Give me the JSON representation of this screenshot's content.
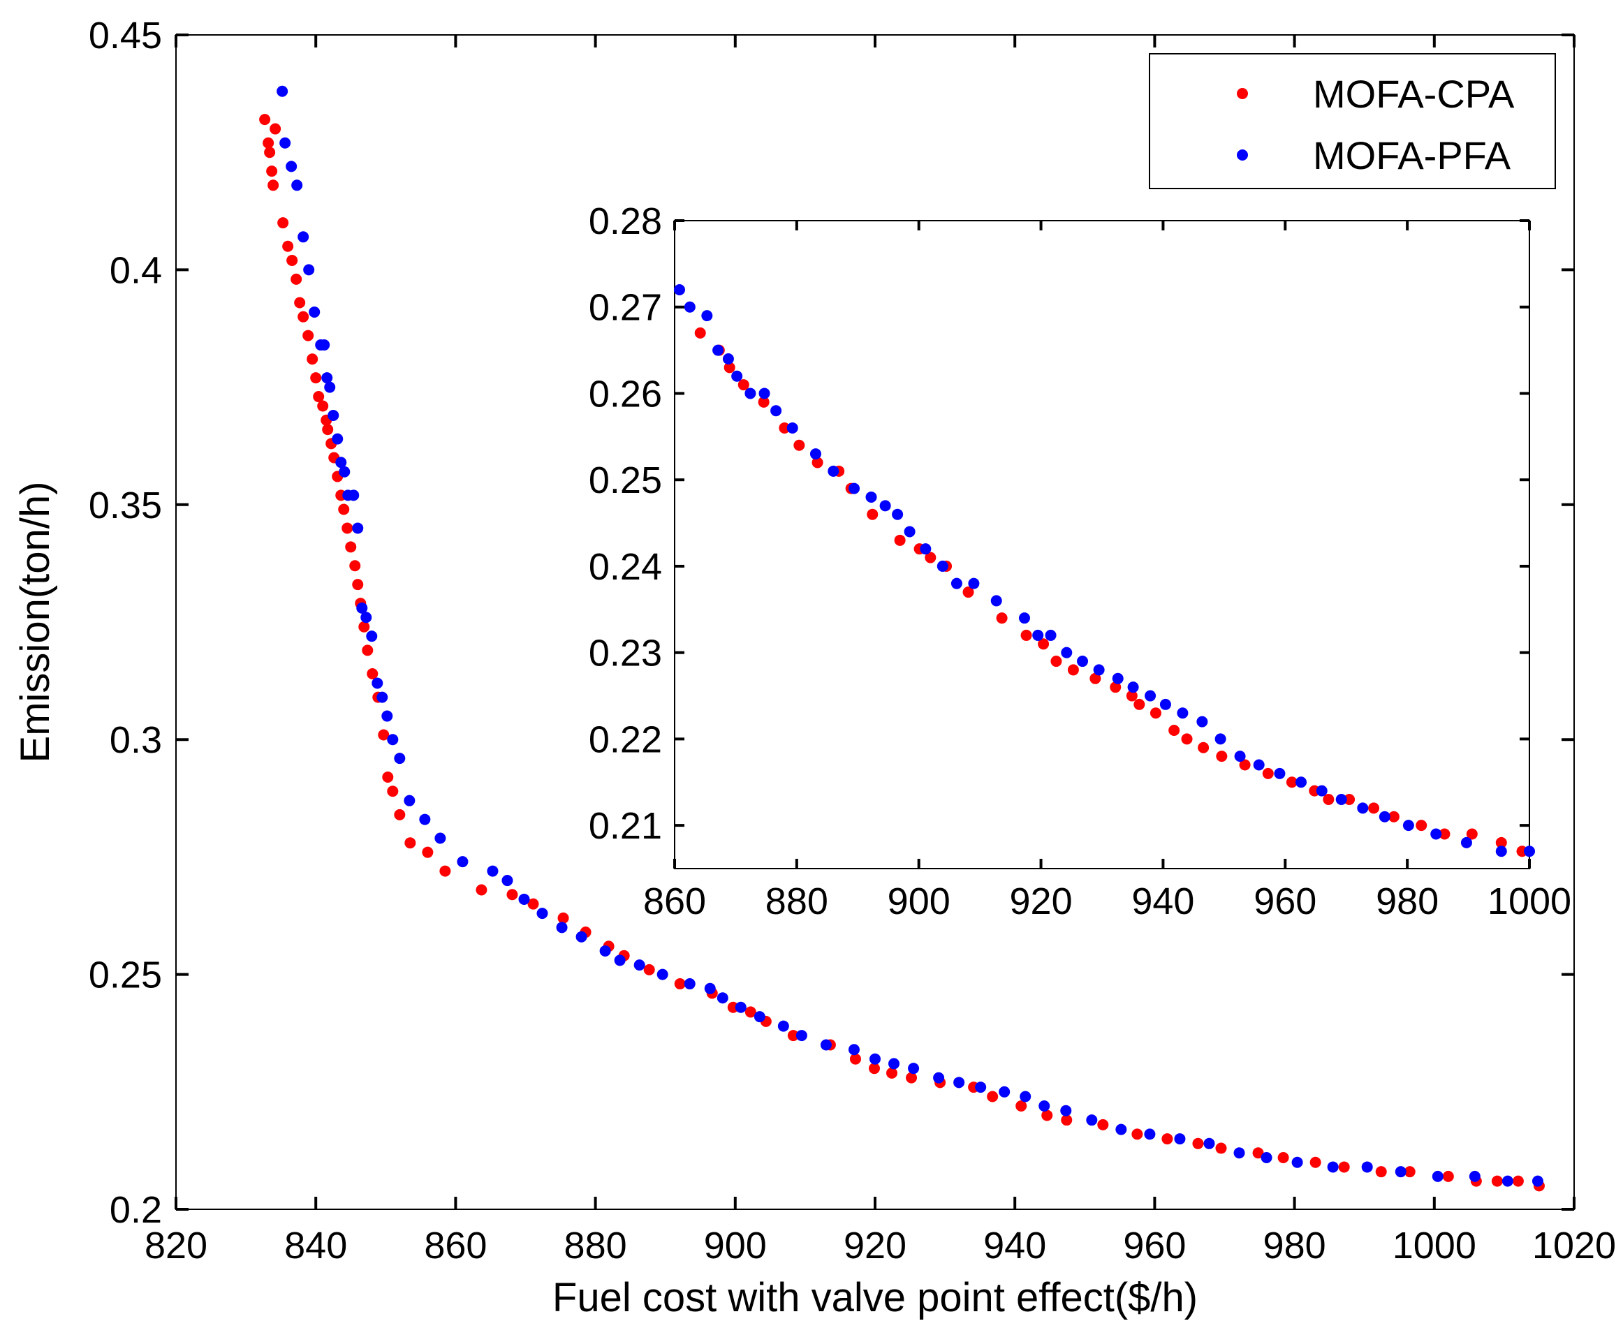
{
  "chart_data": [
    {
      "id": "main",
      "type": "scatter",
      "xlabel": "Fuel cost with valve point effect($/h)",
      "ylabel": "Emission(ton/h)",
      "xlim": [
        820,
        1020
      ],
      "ylim": [
        0.2,
        0.45
      ],
      "xticks": [
        820,
        840,
        860,
        880,
        900,
        920,
        940,
        960,
        980,
        1000,
        1020
      ],
      "yticks": [
        0.2,
        0.25,
        0.3,
        0.35,
        0.4,
        0.45
      ],
      "xtick_labels": [
        "820",
        "840",
        "860",
        "880",
        "900",
        "920",
        "940",
        "960",
        "980",
        "1000",
        "1020"
      ],
      "ytick_labels": [
        "0.2",
        "0.25",
        "0.3",
        "0.35",
        "0.4",
        "0.45"
      ],
      "legend": {
        "position": "top-right",
        "entries": [
          "MOFA-CPA",
          "MOFA-PFA"
        ]
      },
      "series": [
        {
          "name": "MOFA-CPA",
          "color": "#ff0000",
          "x": [
            832.7,
            833.2,
            833.4,
            833.7,
            833.9,
            834.2,
            835.3,
            836.0,
            836.6,
            837.2,
            837.7,
            838.2,
            838.9,
            839.5,
            840.0,
            840.4,
            841.0,
            841.5,
            841.7,
            842.2,
            842.6,
            843.1,
            843.6,
            844.0,
            844.5,
            845.0,
            845.6,
            846.0,
            846.4,
            846.9,
            847.4,
            848.1,
            848.9,
            849.7,
            850.3,
            851.0,
            852.0,
            853.5,
            856.0,
            858.5,
            863.7,
            868.1,
            871.1,
            875.4,
            878.6,
            881.9,
            884.1,
            887.7,
            892.1,
            896.7,
            899.7,
            902.2,
            904.4,
            908.3,
            913.6,
            917.2,
            919.9,
            922.4,
            925.2,
            929.3,
            934.1,
            936.8,
            940.9,
            944.6,
            947.4,
            952.6,
            957.5,
            961.8,
            966.2,
            969.5,
            974.8,
            978.4,
            983.0,
            987.1,
            992.4,
            996.5,
            1002.0,
            1006.0,
            1009.0,
            1012.0,
            1015.0
          ],
          "y": [
            0.432,
            0.427,
            0.425,
            0.421,
            0.418,
            0.43,
            0.41,
            0.405,
            0.402,
            0.398,
            0.393,
            0.39,
            0.386,
            0.381,
            0.377,
            0.373,
            0.371,
            0.368,
            0.366,
            0.363,
            0.36,
            0.356,
            0.352,
            0.349,
            0.345,
            0.341,
            0.337,
            0.333,
            0.329,
            0.324,
            0.319,
            0.314,
            0.309,
            0.301,
            0.292,
            0.289,
            0.284,
            0.278,
            0.276,
            0.272,
            0.268,
            0.267,
            0.265,
            0.262,
            0.259,
            0.256,
            0.254,
            0.251,
            0.248,
            0.246,
            0.243,
            0.242,
            0.24,
            0.237,
            0.235,
            0.232,
            0.23,
            0.229,
            0.228,
            0.227,
            0.226,
            0.224,
            0.222,
            0.22,
            0.219,
            0.218,
            0.216,
            0.215,
            0.214,
            0.213,
            0.212,
            0.211,
            0.21,
            0.209,
            0.208,
            0.208,
            0.207,
            0.206,
            0.206,
            0.206,
            0.205
          ]
        },
        {
          "name": "MOFA-PFA",
          "color": "#0000ff",
          "x": [
            835.2,
            835.6,
            836.5,
            837.3,
            838.2,
            839.0,
            839.8,
            840.7,
            841.2,
            841.6,
            842.0,
            842.5,
            843.1,
            843.6,
            844.1,
            844.6,
            845.4,
            846.0,
            846.6,
            847.2,
            848.0,
            848.8,
            849.5,
            850.2,
            851.0,
            852.0,
            853.4,
            855.6,
            857.8,
            861.0,
            865.3,
            867.4,
            869.8,
            872.4,
            875.2,
            878.0,
            881.4,
            883.5,
            886.3,
            889.6,
            893.5,
            896.4,
            898.2,
            900.8,
            903.5,
            906.9,
            909.5,
            913.0,
            917.0,
            920.0,
            922.7,
            925.5,
            929.1,
            932.0,
            935.1,
            938.5,
            941.5,
            944.2,
            947.3,
            951.0,
            955.2,
            959.3,
            963.6,
            967.8,
            972.1,
            976.0,
            980.4,
            985.5,
            990.4,
            995.2,
            1000.5,
            1005.8,
            1010.5,
            1014.8
          ],
          "y": [
            0.438,
            0.427,
            0.422,
            0.418,
            0.407,
            0.4,
            0.391,
            0.384,
            0.384,
            0.377,
            0.375,
            0.369,
            0.364,
            0.359,
            0.357,
            0.352,
            0.352,
            0.345,
            0.328,
            0.326,
            0.322,
            0.312,
            0.309,
            0.305,
            0.3,
            0.296,
            0.287,
            0.283,
            0.279,
            0.274,
            0.272,
            0.27,
            0.266,
            0.263,
            0.26,
            0.258,
            0.255,
            0.253,
            0.252,
            0.25,
            0.248,
            0.247,
            0.245,
            0.243,
            0.241,
            0.239,
            0.237,
            0.235,
            0.234,
            0.232,
            0.231,
            0.23,
            0.228,
            0.227,
            0.226,
            0.225,
            0.224,
            0.222,
            0.221,
            0.219,
            0.217,
            0.216,
            0.215,
            0.214,
            0.212,
            0.211,
            0.21,
            0.209,
            0.209,
            0.208,
            0.207,
            0.207,
            0.206,
            0.206
          ]
        }
      ]
    },
    {
      "id": "inset",
      "type": "scatter",
      "xlabel": "",
      "ylabel": "",
      "xlim": [
        860,
        1000
      ],
      "ylim": [
        0.205,
        0.28
      ],
      "xticks": [
        860,
        880,
        900,
        920,
        940,
        960,
        980,
        1000
      ],
      "yticks": [
        0.21,
        0.22,
        0.23,
        0.24,
        0.25,
        0.26,
        0.27,
        0.28
      ],
      "xtick_labels": [
        "860",
        "880",
        "900",
        "920",
        "940",
        "960",
        "980",
        "1000"
      ],
      "ytick_labels": [
        "0.21",
        "0.22",
        "0.23",
        "0.24",
        "0.25",
        "0.26",
        "0.27",
        "0.28"
      ],
      "series": [
        {
          "name": "MOFA-CPA",
          "color": "#ff0000",
          "x": [
            864.2,
            867.3,
            869.0,
            871.3,
            874.6,
            878.0,
            880.4,
            883.4,
            886.9,
            888.9,
            892.4,
            896.9,
            900.1,
            901.9,
            904.5,
            908.1,
            913.6,
            917.6,
            920.4,
            922.5,
            925.3,
            928.9,
            932.2,
            934.9,
            936.1,
            938.8,
            941.8,
            943.9,
            946.6,
            949.6,
            953.4,
            957.2,
            961.1,
            964.8,
            967.1,
            970.5,
            974.5,
            977.8,
            982.3,
            986.1,
            990.6,
            995.4,
            998.8
          ],
          "y": [
            0.267,
            0.265,
            0.263,
            0.261,
            0.259,
            0.256,
            0.254,
            0.252,
            0.251,
            0.249,
            0.246,
            0.243,
            0.242,
            0.241,
            0.24,
            0.237,
            0.234,
            0.232,
            0.231,
            0.229,
            0.228,
            0.227,
            0.226,
            0.225,
            0.224,
            0.223,
            0.221,
            0.22,
            0.219,
            0.218,
            0.217,
            0.216,
            0.215,
            0.214,
            0.213,
            0.213,
            0.212,
            0.211,
            0.21,
            0.209,
            0.209,
            0.208,
            0.207
          ]
        },
        {
          "name": "MOFA-PFA",
          "color": "#0000ff",
          "x": [
            860.8,
            862.5,
            865.3,
            867.1,
            868.8,
            870.2,
            872.4,
            874.7,
            876.6,
            879.3,
            883.1,
            886.0,
            889.4,
            892.2,
            894.5,
            896.5,
            898.5,
            901.1,
            903.9,
            906.2,
            909.0,
            912.7,
            917.3,
            919.5,
            921.6,
            924.2,
            926.8,
            929.5,
            932.6,
            935.1,
            937.9,
            940.4,
            943.2,
            946.4,
            949.4,
            952.6,
            955.7,
            959.1,
            962.6,
            966.0,
            969.2,
            972.7,
            976.3,
            980.2,
            984.7,
            989.7,
            995.4,
            1000.0
          ],
          "y": [
            0.272,
            0.27,
            0.269,
            0.265,
            0.264,
            0.262,
            0.26,
            0.26,
            0.258,
            0.256,
            0.253,
            0.251,
            0.249,
            0.248,
            0.247,
            0.246,
            0.244,
            0.242,
            0.24,
            0.238,
            0.238,
            0.236,
            0.234,
            0.232,
            0.232,
            0.23,
            0.229,
            0.228,
            0.227,
            0.226,
            0.225,
            0.224,
            0.223,
            0.222,
            0.22,
            0.218,
            0.217,
            0.216,
            0.215,
            0.214,
            0.213,
            0.212,
            0.211,
            0.21,
            0.209,
            0.208,
            0.207,
            0.207
          ]
        }
      ]
    }
  ]
}
